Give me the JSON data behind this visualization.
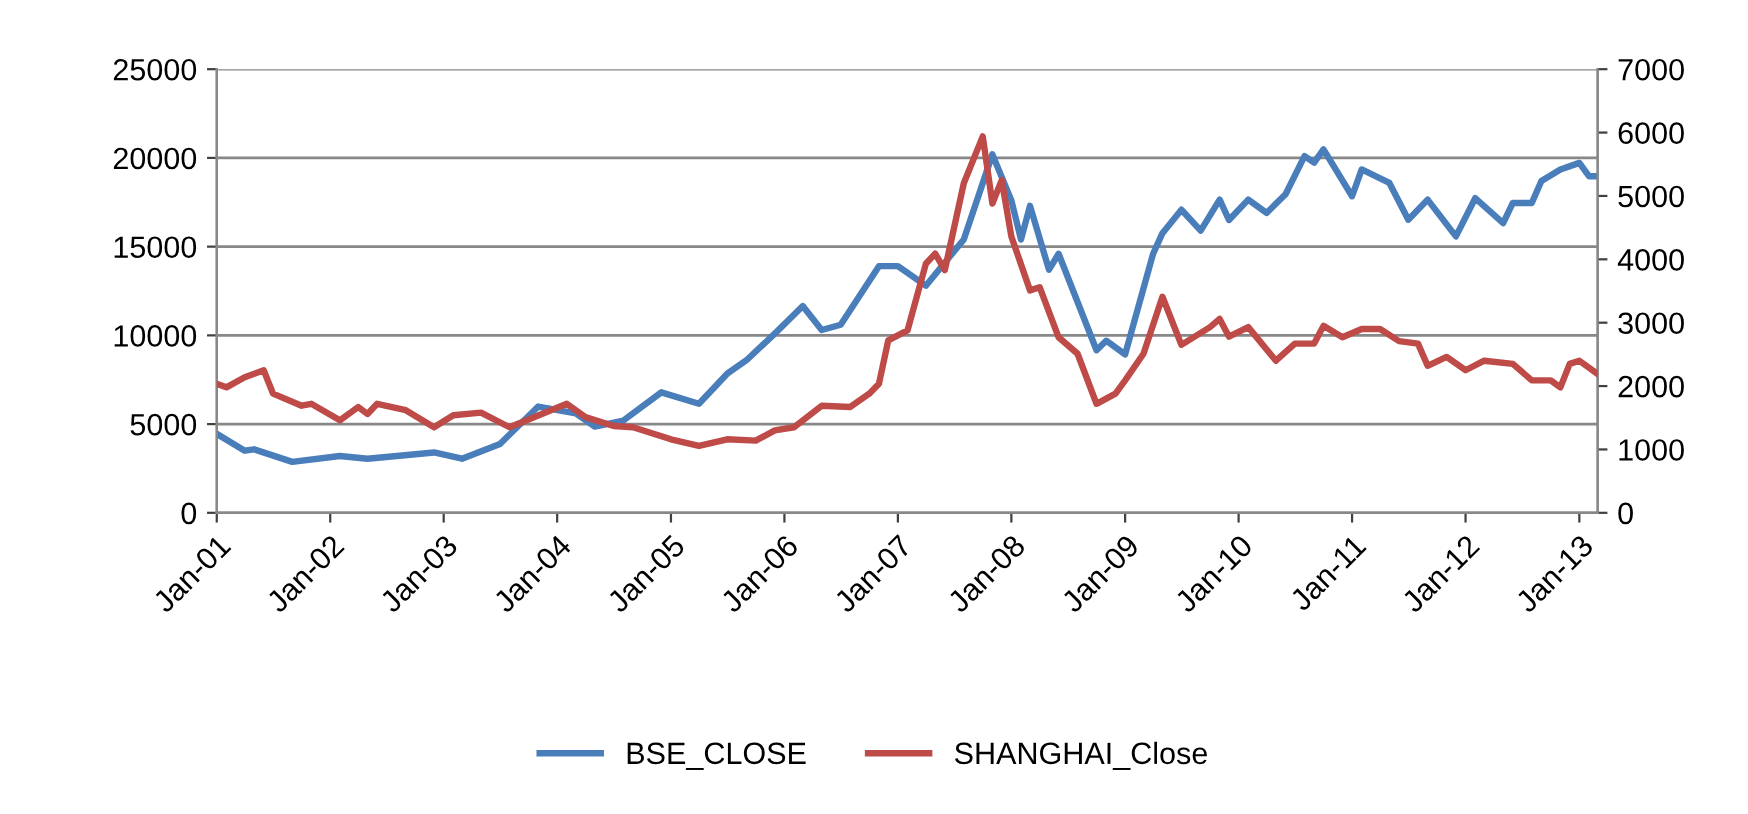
{
  "chart_data": {
    "type": "line",
    "xlim": [
      "2001-01",
      "2013-03"
    ],
    "xticks": [
      {
        "value": "2001-01",
        "label": "Jan-01"
      },
      {
        "value": "2002-01",
        "label": "Jan-02"
      },
      {
        "value": "2003-01",
        "label": "Jan-03"
      },
      {
        "value": "2004-01",
        "label": "Jan-04"
      },
      {
        "value": "2005-01",
        "label": "Jan-05"
      },
      {
        "value": "2006-01",
        "label": "Jan-06"
      },
      {
        "value": "2007-01",
        "label": "Jan-07"
      },
      {
        "value": "2008-01",
        "label": "Jan-08"
      },
      {
        "value": "2009-01",
        "label": "Jan-09"
      },
      {
        "value": "2010-01",
        "label": "Jan-10"
      },
      {
        "value": "2011-01",
        "label": "Jan-11"
      },
      {
        "value": "2012-01",
        "label": "Jan-12"
      },
      {
        "value": "2013-01",
        "label": "Jan-13"
      }
    ],
    "ylim": [
      0,
      25000
    ],
    "yticks": [
      0,
      5000,
      10000,
      15000,
      20000,
      25000
    ],
    "y2lim": [
      0,
      7000
    ],
    "y2ticks": [
      0,
      1000,
      2000,
      3000,
      4000,
      5000,
      6000,
      7000
    ],
    "grid": "y",
    "legend": "bottom",
    "line_style": "solid",
    "marker": "none",
    "series": [
      {
        "name": "BSE_CLOSE",
        "color": "#4a7ebb",
        "x": [
          "2001-01",
          "2001-04",
          "2001-05",
          "2001-09",
          "2002-02",
          "2002-05",
          "2002-12",
          "2003-03",
          "2003-07",
          "2003-11",
          "2004-03",
          "2004-05",
          "2004-08",
          "2004-12",
          "2005-04",
          "2005-07",
          "2005-09",
          "2005-12",
          "2006-03",
          "2006-05",
          "2006-07",
          "2006-11",
          "2007-01",
          "2007-04",
          "2007-08",
          "2007-11",
          "2008-01",
          "2008-02",
          "2008-03",
          "2008-05",
          "2008-06",
          "2008-10",
          "2008-11",
          "2009-01",
          "2009-04",
          "2009-05",
          "2009-07",
          "2009-09",
          "2009-11",
          "2009-12",
          "2010-02",
          "2010-04",
          "2010-06",
          "2010-08",
          "2010-09",
          "2010-10",
          "2011-01",
          "2011-02",
          "2011-05",
          "2011-07",
          "2011-09",
          "2011-12",
          "2012-02",
          "2012-05",
          "2012-06",
          "2012-08",
          "2012-09",
          "2012-11",
          "2013-01",
          "2013-02",
          "2013-03"
        ],
        "values": [
          4450,
          3500,
          3580,
          2870,
          3200,
          3050,
          3400,
          3050,
          3880,
          5990,
          5600,
          4860,
          5200,
          6790,
          6150,
          7840,
          8600,
          10100,
          11650,
          10300,
          10600,
          13900,
          13900,
          12800,
          15400,
          20200,
          17600,
          15400,
          17300,
          13700,
          14600,
          9160,
          9700,
          8930,
          14600,
          15760,
          17080,
          15900,
          17650,
          16500,
          17650,
          16900,
          17950,
          20100,
          19730,
          20480,
          17840,
          19350,
          18590,
          16520,
          17650,
          15580,
          17730,
          16330,
          17460,
          17460,
          18700,
          19350,
          19720,
          18970,
          18970
        ]
      },
      {
        "name": "SHANGHAI_Close",
        "color": "#be4b48",
        "axis": "y2",
        "x": [
          "2001-01",
          "2001-02",
          "2001-04",
          "2001-06",
          "2001-07",
          "2001-10",
          "2001-11",
          "2002-02",
          "2002-04",
          "2002-05",
          "2002-06",
          "2002-09",
          "2002-12",
          "2003-02",
          "2003-05",
          "2003-08",
          "2004-02",
          "2004-04",
          "2004-07",
          "2004-09",
          "2005-01",
          "2005-04",
          "2005-07",
          "2005-10",
          "2005-12",
          "2006-02",
          "2006-05",
          "2006-08",
          "2006-10",
          "2006-11",
          "2006-12",
          "2007-02",
          "2007-04",
          "2007-05",
          "2007-06",
          "2007-08",
          "2007-10",
          "2007-11",
          "2007-12",
          "2008-01",
          "2008-03",
          "2008-04",
          "2008-06",
          "2008-08",
          "2008-10",
          "2008-12",
          "2009-01",
          "2009-03",
          "2009-05",
          "2009-07",
          "2009-10",
          "2009-11",
          "2009-12",
          "2010-02",
          "2010-05",
          "2010-07",
          "2010-09",
          "2010-10",
          "2010-12",
          "2011-02",
          "2011-04",
          "2011-06",
          "2011-08",
          "2011-09",
          "2011-11",
          "2012-01",
          "2012-03",
          "2012-06",
          "2012-08",
          "2012-10",
          "2012-11",
          "2012-12",
          "2013-01",
          "2013-03"
        ],
        "values": [
          2035,
          1980,
          2140,
          2250,
          1880,
          1690,
          1720,
          1460,
          1670,
          1560,
          1720,
          1620,
          1350,
          1540,
          1580,
          1350,
          1720,
          1510,
          1370,
          1350,
          1160,
          1055,
          1160,
          1140,
          1300,
          1350,
          1690,
          1670,
          1880,
          2035,
          2720,
          2880,
          3930,
          4090,
          3830,
          5200,
          5940,
          4880,
          5250,
          4360,
          3510,
          3560,
          2770,
          2510,
          1720,
          1880,
          2090,
          2510,
          3410,
          2650,
          2930,
          3060,
          2780,
          2930,
          2400,
          2670,
          2670,
          2950,
          2770,
          2900,
          2900,
          2710,
          2670,
          2320,
          2460,
          2250,
          2400,
          2350,
          2090,
          2090,
          1980,
          2350,
          2400,
          2190
        ]
      }
    ]
  }
}
